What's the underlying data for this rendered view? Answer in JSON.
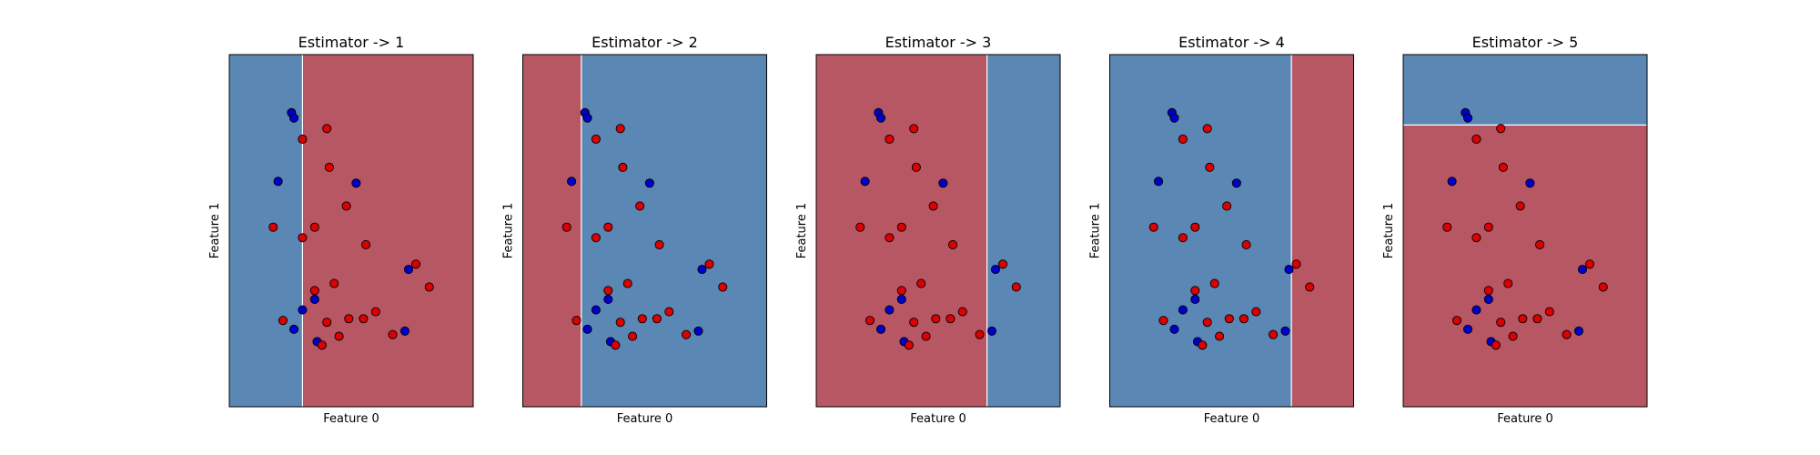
{
  "chart_data": [
    {
      "type": "scatter",
      "title": "Estimator -> 1",
      "xlabel": "Feature 0",
      "ylabel": "Feature 1",
      "xlim": [
        0,
        10
      ],
      "ylim": [
        0,
        10
      ],
      "grid": false,
      "split": {
        "orientation": "vertical",
        "at": 3.0,
        "left_class": "blue",
        "right_class": "red"
      }
    },
    {
      "type": "scatter",
      "title": "Estimator -> 2",
      "xlabel": "Feature 0",
      "ylabel": "Feature 1",
      "xlim": [
        0,
        10
      ],
      "ylim": [
        0,
        10
      ],
      "grid": false,
      "split": {
        "orientation": "vertical",
        "at": 2.4,
        "left_class": "red",
        "right_class": "blue"
      }
    },
    {
      "type": "scatter",
      "title": "Estimator -> 3",
      "xlabel": "Feature 0",
      "ylabel": "Feature 1",
      "xlim": [
        0,
        10
      ],
      "ylim": [
        0,
        10
      ],
      "grid": false,
      "split": {
        "orientation": "vertical",
        "at": 7.0,
        "left_class": "red",
        "right_class": "blue"
      }
    },
    {
      "type": "scatter",
      "title": "Estimator -> 4",
      "xlabel": "Feature 0",
      "ylabel": "Feature 1",
      "xlim": [
        0,
        10
      ],
      "ylim": [
        0,
        10
      ],
      "grid": false,
      "split": {
        "orientation": "vertical",
        "at": 7.45,
        "left_class": "blue",
        "right_class": "red"
      }
    },
    {
      "type": "scatter",
      "title": "Estimator -> 5",
      "xlabel": "Feature 0",
      "ylabel": "Feature 1",
      "xlim": [
        0,
        10
      ],
      "ylim": [
        0,
        10
      ],
      "grid": false,
      "split": {
        "orientation": "horizontal",
        "at": 8.0,
        "below_class": "red",
        "above_class": "blue"
      }
    }
  ],
  "points": [
    {
      "x": 2.55,
      "y": 8.35,
      "class": "blue"
    },
    {
      "x": 2.65,
      "y": 8.2,
      "class": "blue"
    },
    {
      "x": 4.0,
      "y": 7.9,
      "class": "red"
    },
    {
      "x": 3.0,
      "y": 7.6,
      "class": "red"
    },
    {
      "x": 4.1,
      "y": 6.8,
      "class": "red"
    },
    {
      "x": 2.0,
      "y": 6.4,
      "class": "blue"
    },
    {
      "x": 5.2,
      "y": 6.35,
      "class": "blue"
    },
    {
      "x": 4.8,
      "y": 5.7,
      "class": "red"
    },
    {
      "x": 1.8,
      "y": 5.1,
      "class": "red"
    },
    {
      "x": 3.5,
      "y": 5.1,
      "class": "red"
    },
    {
      "x": 3.0,
      "y": 4.8,
      "class": "red"
    },
    {
      "x": 5.6,
      "y": 4.6,
      "class": "red"
    },
    {
      "x": 7.65,
      "y": 4.05,
      "class": "red"
    },
    {
      "x": 7.35,
      "y": 3.9,
      "class": "blue"
    },
    {
      "x": 4.3,
      "y": 3.5,
      "class": "red"
    },
    {
      "x": 8.2,
      "y": 3.4,
      "class": "red"
    },
    {
      "x": 3.5,
      "y": 3.3,
      "class": "red"
    },
    {
      "x": 3.5,
      "y": 3.05,
      "class": "blue"
    },
    {
      "x": 3.0,
      "y": 2.75,
      "class": "blue"
    },
    {
      "x": 6.0,
      "y": 2.7,
      "class": "red"
    },
    {
      "x": 2.2,
      "y": 2.45,
      "class": "red"
    },
    {
      "x": 4.9,
      "y": 2.5,
      "class": "red"
    },
    {
      "x": 5.5,
      "y": 2.5,
      "class": "red"
    },
    {
      "x": 4.0,
      "y": 2.4,
      "class": "red"
    },
    {
      "x": 2.65,
      "y": 2.2,
      "class": "blue"
    },
    {
      "x": 7.2,
      "y": 2.15,
      "class": "blue"
    },
    {
      "x": 6.7,
      "y": 2.05,
      "class": "red"
    },
    {
      "x": 4.5,
      "y": 2.0,
      "class": "red"
    },
    {
      "x": 3.6,
      "y": 1.85,
      "class": "blue"
    },
    {
      "x": 3.8,
      "y": 1.75,
      "class": "red"
    }
  ],
  "colors": {
    "region_blue": "#5b87b5",
    "region_red": "#b85764",
    "point_blue": "#0000cc",
    "point_red": "#dd0000",
    "boundary": "#ffffff"
  }
}
